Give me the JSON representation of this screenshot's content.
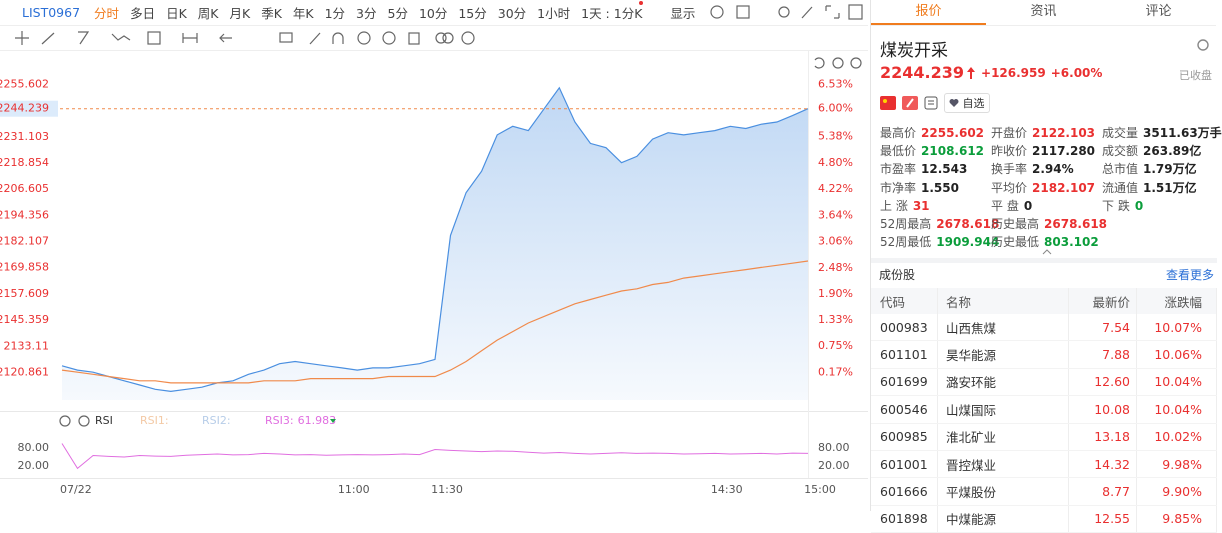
{
  "toolbar": {
    "symbol": "LIST0967",
    "periods": [
      "分时",
      "多日",
      "日K",
      "周K",
      "月K",
      "季K",
      "年K",
      "1分",
      "3分",
      "5分",
      "10分",
      "15分",
      "30分",
      "1小时",
      "1天 : 1分K"
    ],
    "display": "显示"
  },
  "chart_data": [
    {
      "type": "line",
      "categories": [
        "07/22",
        null,
        null,
        null,
        null,
        null,
        null,
        null,
        null,
        null,
        null,
        null,
        null,
        null,
        null,
        null,
        null,
        null,
        "11:00",
        null,
        null,
        null,
        null,
        null,
        "11:30",
        null,
        null,
        null,
        null,
        null,
        null,
        null,
        null,
        null,
        null,
        null,
        null,
        null,
        null,
        null,
        null,
        null,
        "14:30",
        null,
        null,
        null,
        null,
        null,
        "15:00"
      ],
      "series": [
        {
          "color": "#4a8fe0",
          "values": [
            2124,
            2122,
            2121,
            2119,
            2117,
            2115,
            2113,
            2112,
            2113,
            2114,
            2116,
            2117,
            2120,
            2122,
            2125,
            2126,
            2125,
            2124,
            2123,
            2122,
            2123,
            2123,
            2124,
            2125,
            2127,
            2185,
            2205,
            2215,
            2232,
            2236,
            2234,
            2244,
            2254,
            2238,
            2228,
            2226,
            2219,
            2222,
            2230,
            2233,
            2232,
            2233,
            2234,
            2236,
            2235,
            2237,
            2238,
            2241,
            2244.239
          ]
        },
        {
          "color": "#f08a4b",
          "values": [
            2122,
            2121,
            2120,
            2119,
            2118,
            2117,
            2117,
            2116,
            2116,
            2116,
            2116,
            2116,
            2116,
            2117,
            2117,
            2117,
            2118,
            2118,
            2118,
            2118,
            2118,
            2119,
            2119,
            2119,
            2119,
            2122,
            2126,
            2131,
            2136,
            2140,
            2144,
            2147,
            2150,
            2153,
            2155,
            2157,
            2159,
            2160,
            2162,
            2163,
            2165,
            2166,
            2167,
            2168,
            2169,
            2170,
            2171,
            2172,
            2173
          ]
        }
      ],
      "ylim": [
        2108,
        2260
      ],
      "yticks": [
        2255.602,
        2231.103,
        2218.854,
        2206.605,
        2194.356,
        2182.107,
        2169.858,
        2157.609,
        2145.359,
        2133.11,
        2120.861
      ],
      "y2lim": [
        -0.44,
        6.74
      ],
      "y2ticks": [
        {
          "value": 6.53,
          "label": "6.53%"
        },
        {
          "value": 5.38,
          "label": "5.38%"
        },
        {
          "value": 4.8,
          "label": "4.80%"
        },
        {
          "value": 4.22,
          "label": "4.22%"
        },
        {
          "value": 3.64,
          "label": "3.64%"
        },
        {
          "value": 3.06,
          "label": "3.06%"
        },
        {
          "value": 2.48,
          "label": "2.48%"
        },
        {
          "value": 1.9,
          "label": "1.90%"
        },
        {
          "value": 1.33,
          "label": "1.33%"
        },
        {
          "value": 0.75,
          "label": "0.75%"
        },
        {
          "value": 0.17,
          "label": "0.17%"
        }
      ],
      "last_price": 2244.239,
      "last_change": {
        "value": 6.0,
        "label": "6.00%"
      },
      "grid": false
    },
    {
      "type": "line",
      "title": "RSI",
      "inactive_series": [
        "RSI1:",
        "RSI2:"
      ],
      "series": [
        {
          "name": "RSI3:",
          "color": "#e06ee0",
          "values": [
            95,
            12,
            55,
            52,
            50,
            55,
            53,
            52,
            56,
            58,
            60,
            57,
            58,
            62,
            60,
            57,
            58,
            56,
            57,
            58,
            57,
            58,
            60,
            58,
            75,
            72,
            70,
            68,
            70,
            69,
            66,
            63,
            65,
            62,
            60,
            62,
            64,
            62,
            63,
            62,
            60,
            61,
            62,
            60,
            61,
            62,
            60,
            63,
            61.983
          ]
        }
      ],
      "ylim": [
        0,
        100
      ],
      "yticks": [
        {
          "value": 80,
          "label": "80.00"
        },
        {
          "value": 20,
          "label": "20.00"
        }
      ]
    }
  ],
  "quote": {
    "tabs": [
      "报价",
      "资讯",
      "评论"
    ],
    "name": "煤炭开采",
    "price": "2244.239",
    "change": "+126.959",
    "change_pct": "+6.00%",
    "status": "已收盘",
    "watch": "自选",
    "stats": [
      [
        {
          "label": "最高价",
          "value": "2255.602",
          "color": "#e93030"
        },
        {
          "label": "开盘价",
          "value": "2122.103",
          "color": "#e93030"
        },
        {
          "label": "成交量",
          "value": "3511.63万手",
          "color": "#222222"
        }
      ],
      [
        {
          "label": "最低价",
          "value": "2108.612",
          "color": "#0b9d3b"
        },
        {
          "label": "昨收价",
          "value": "2117.280",
          "color": "#222222"
        },
        {
          "label": "成交额",
          "value": "263.89亿",
          "color": "#222222"
        }
      ],
      [
        {
          "label": "市盈率",
          "value": "12.543",
          "color": "#222222"
        },
        {
          "label": "换手率",
          "value": "2.94%",
          "color": "#222222"
        },
        {
          "label": "总市值",
          "value": "1.79万亿",
          "color": "#222222"
        }
      ],
      [
        {
          "label": "市净率",
          "value": "1.550",
          "color": "#222222"
        },
        {
          "label": "平均价",
          "value": "2182.107",
          "color": "#e93030"
        },
        {
          "label": "流通值",
          "value": "1.51万亿",
          "color": "#222222"
        }
      ],
      [
        {
          "label": "上 涨",
          "value": "31",
          "color": "#e93030"
        },
        {
          "label": "平 盘",
          "value": "0",
          "color": "#222222"
        },
        {
          "label": "下 跌",
          "value": "0",
          "color": "#0b9d3b"
        }
      ],
      [
        {
          "label": "52周最高",
          "value": "2678.618",
          "color": "#e93030"
        },
        {
          "label": "历史最高",
          "value": "2678.618",
          "color": "#e93030"
        }
      ],
      [
        {
          "label": "52周最低",
          "value": "1909.944",
          "color": "#0b9d3b"
        },
        {
          "label": "历史最低",
          "value": "803.102",
          "color": "#0b9d3b"
        }
      ]
    ]
  },
  "constituents": {
    "title": "成份股",
    "more": "查看更多",
    "columns": [
      "代码",
      "名称",
      "最新价",
      "涨跌幅"
    ],
    "rows": [
      [
        "000983",
        "山西焦煤",
        "7.54",
        "10.07%"
      ],
      [
        "601101",
        "昊华能源",
        "7.88",
        "10.06%"
      ],
      [
        "601699",
        "潞安环能",
        "12.60",
        "10.04%"
      ],
      [
        "600546",
        "山煤国际",
        "10.08",
        "10.04%"
      ],
      [
        "600985",
        "淮北矿业",
        "13.18",
        "10.02%"
      ],
      [
        "601001",
        "晋控煤业",
        "14.32",
        "9.98%"
      ],
      [
        "601666",
        "平煤股份",
        "8.77",
        "9.90%"
      ],
      [
        "601898",
        "中煤能源",
        "12.55",
        "9.85%"
      ]
    ]
  }
}
